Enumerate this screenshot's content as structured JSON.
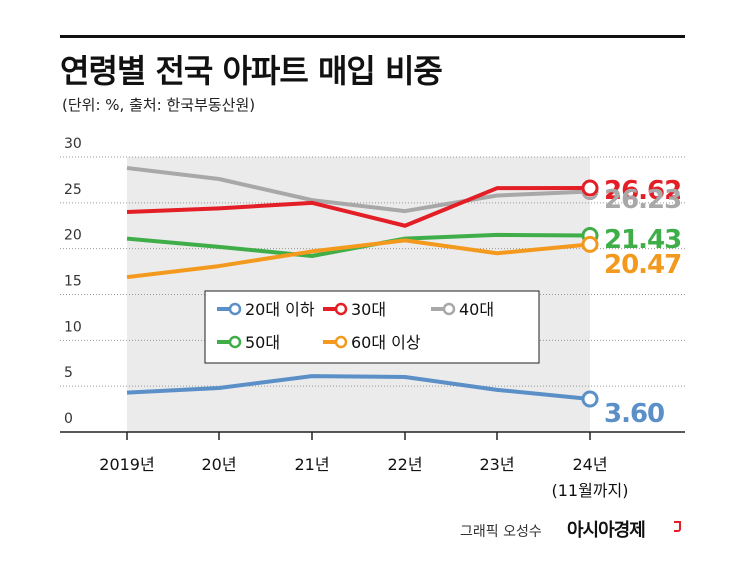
{
  "title": "연령별 전국 아파트 매입 비중",
  "subtitle": "(단위: %, 출처: 한국부동산원)",
  "credit": "그래픽 오성수",
  "brand": "아시아경제",
  "chart_data": {
    "type": "line",
    "categories": [
      "2019년",
      "20년",
      "21년",
      "22년",
      "23년",
      "24년"
    ],
    "category_notes": [
      "",
      "",
      "",
      "",
      "",
      "(11월까지)"
    ],
    "ylim": [
      0,
      30
    ],
    "yticks": [
      0,
      5,
      10,
      15,
      20,
      25,
      30
    ],
    "legend_position": "center",
    "series": [
      {
        "name": "20대 이하",
        "color": "#5b8fc7",
        "values": [
          4.3,
          4.8,
          6.1,
          6.0,
          4.6,
          3.6
        ],
        "end_label": "3.60"
      },
      {
        "name": "30대",
        "color": "#e41e26",
        "values": [
          24.0,
          24.4,
          25.0,
          22.5,
          26.6,
          26.62
        ],
        "end_label": "26.62"
      },
      {
        "name": "40대",
        "color": "#a8a8a8",
        "values": [
          28.8,
          27.6,
          25.3,
          24.1,
          25.8,
          26.23
        ],
        "end_label": "26.23"
      },
      {
        "name": "50대",
        "color": "#3fae49",
        "values": [
          21.1,
          20.2,
          19.2,
          21.1,
          21.5,
          21.43
        ],
        "end_label": "21.43"
      },
      {
        "name": "60대 이상",
        "color": "#f39a1e",
        "values": [
          16.9,
          18.1,
          19.7,
          20.9,
          19.5,
          20.47
        ],
        "end_label": "20.47"
      }
    ],
    "legend_order": [
      0,
      1,
      2,
      3,
      4
    ]
  }
}
